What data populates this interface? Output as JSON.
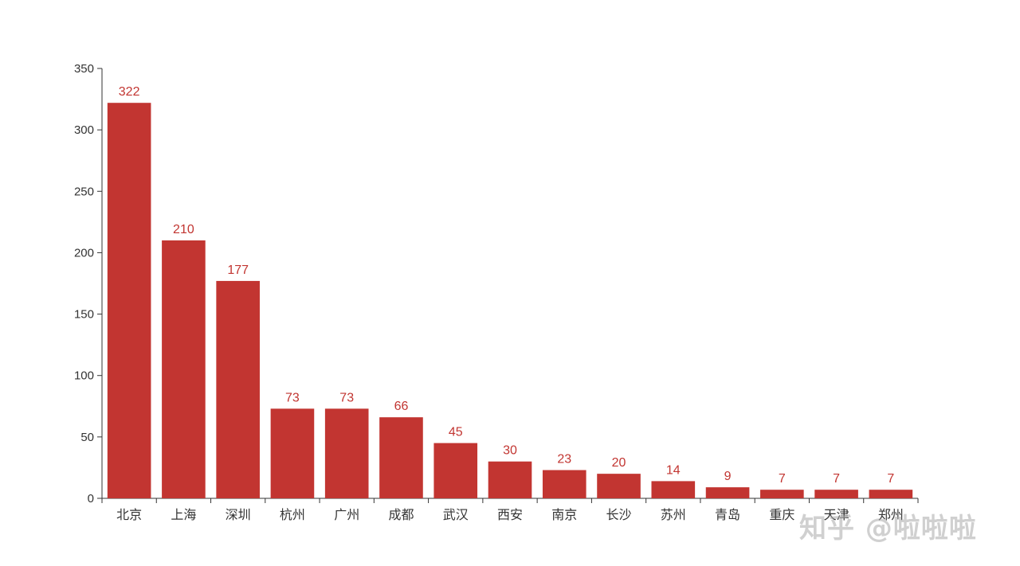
{
  "chart_data": {
    "type": "bar",
    "categories": [
      "北京",
      "上海",
      "深圳",
      "杭州",
      "广州",
      "成都",
      "武汉",
      "西安",
      "南京",
      "长沙",
      "苏州",
      "青岛",
      "重庆",
      "天津",
      "郑州"
    ],
    "values": [
      322,
      210,
      177,
      73,
      73,
      66,
      45,
      30,
      23,
      20,
      14,
      9,
      7,
      7,
      7
    ],
    "yticks": [
      "0",
      "50",
      "100",
      "150",
      "200",
      "250",
      "300",
      "350"
    ],
    "ylim": [
      0,
      350
    ],
    "title": "",
    "xlabel": "",
    "ylabel": "",
    "grid": false,
    "bar_color": "#c23531",
    "label_color": "#c23531",
    "axis_color": "#333333"
  },
  "watermark": "知乎 @啦啦啦"
}
